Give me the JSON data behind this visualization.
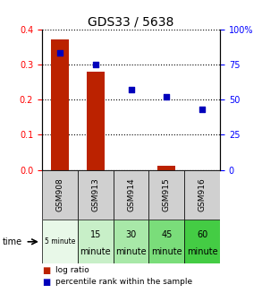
{
  "title": "GDS33 / 5638",
  "categories": [
    "GSM908",
    "GSM913",
    "GSM914",
    "GSM915",
    "GSM916"
  ],
  "time_labels_line1": [
    "5 minute",
    "15",
    "30",
    "45",
    "60"
  ],
  "time_labels_line2": [
    "",
    "minute",
    "minute",
    "minute",
    "minute"
  ],
  "log_ratio": [
    0.37,
    0.28,
    -0.008,
    0.012,
    -0.008
  ],
  "percentile_rank": [
    83,
    75,
    57,
    52,
    43
  ],
  "ylim_left": [
    0,
    0.4
  ],
  "ylim_right": [
    0,
    100
  ],
  "yticks_left": [
    0,
    0.1,
    0.2,
    0.3,
    0.4
  ],
  "yticks_right": [
    0,
    25,
    50,
    75,
    100
  ],
  "bar_color": "#bb2200",
  "scatter_color": "#0000bb",
  "time_bg_colors": [
    "#e8f8e8",
    "#c8efc8",
    "#a8e8a8",
    "#7add7a",
    "#44cc44"
  ],
  "gsm_bg_color": "#d0d0d0",
  "legend_items": [
    "log ratio",
    "percentile rank within the sample"
  ]
}
